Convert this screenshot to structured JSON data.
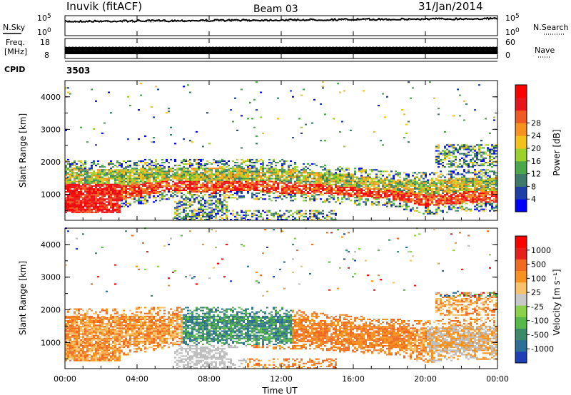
{
  "header": {
    "station": "Inuvik (fitACF)",
    "beam": "Beam 03",
    "date": "31/Jan/2014"
  },
  "top_panels": {
    "nsky": {
      "label": "N.Sky",
      "ticks": [
        "10^5",
        "10^0"
      ]
    },
    "nsearch": {
      "label": "N.Search",
      "ticks": [
        "10^5",
        "10^0"
      ]
    },
    "freq": {
      "label_line1": "Freq.",
      "label_line2": "[MHz]",
      "ticks": [
        "18",
        "8"
      ]
    },
    "nave": {
      "label": "Nave",
      "ticks": [
        "60",
        "0"
      ]
    },
    "cpid": {
      "label": "CPID",
      "value": "3503"
    }
  },
  "chart_data": [
    {
      "type": "heatmap",
      "name": "power",
      "ylabel": "Slant Range [km]",
      "xlabel": "Time UT",
      "x_ticks": [
        "00:00",
        "04:00",
        "08:00",
        "12:00",
        "16:00",
        "20:00",
        "00:00"
      ],
      "y_ticks": [
        1000,
        2000,
        3000,
        4000
      ],
      "ylim": [
        200,
        4500
      ],
      "xlim_hours": [
        0,
        24
      ],
      "colorbar": {
        "label": "Power [dB]",
        "ticks": [
          "4",
          "8",
          "12",
          "16",
          "20",
          "24",
          "28"
        ],
        "colors": [
          "#0000ff",
          "#1f3fa8",
          "#3d7a6a",
          "#4aa84a",
          "#9bd12b",
          "#f2c21b",
          "#f6921e",
          "#f05a22",
          "#e8141c",
          "#ff0000"
        ]
      }
    },
    {
      "type": "heatmap",
      "name": "velocity",
      "ylabel": "Slant Range [km]",
      "xlabel": "Time UT",
      "x_ticks": [
        "00:00",
        "04:00",
        "08:00",
        "12:00",
        "16:00",
        "20:00",
        "00:00"
      ],
      "y_ticks": [
        1000,
        2000,
        3000,
        4000
      ],
      "ylim": [
        200,
        4500
      ],
      "xlim_hours": [
        0,
        24
      ],
      "colorbar": {
        "label": "Velocity [m s⁻¹]",
        "ticks": [
          "1000",
          "500",
          "100",
          "25",
          "-25",
          "-100",
          "-500",
          "-1000"
        ],
        "colors": [
          "#1f3fb8",
          "#2d6f96",
          "#3d8a6a",
          "#57b84a",
          "#8bd14a",
          "#c8c8c8",
          "#f8c26a",
          "#f6921e",
          "#f06a22",
          "#e8201c",
          "#ff0000"
        ]
      }
    }
  ],
  "colors": {
    "ground_scatter": "#bdbdbd"
  }
}
